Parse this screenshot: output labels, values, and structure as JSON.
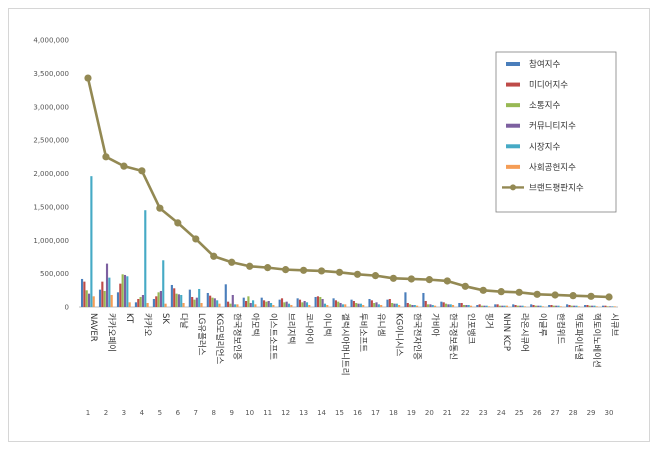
{
  "chart_data": {
    "type": "bar",
    "title": "",
    "xlabel": "",
    "ylabel": "",
    "ylim": [
      0,
      4000000
    ],
    "yticks": [
      "0",
      "500,000",
      "1,000,000",
      "1,500,000",
      "2,000,000",
      "2,500,000",
      "3,000,000",
      "3,500,000",
      "4,000,000"
    ],
    "grid": false,
    "legend_position": "top-right",
    "categories": [
      "NAVER",
      "카카오페이",
      "KT",
      "카카오",
      "SK",
      "다날",
      "LG유플러스",
      "KG모빌리언스",
      "한국정보인증",
      "아모텍",
      "이스트소프트",
      "브리지텍",
      "코나아이",
      "이니텍",
      "갤럭시아머니트리",
      "투비소프트",
      "유니셈",
      "KG이니시스",
      "한국전자인증",
      "가비아",
      "한국정보통신",
      "인포뱅크",
      "핑거",
      "NHN KCP",
      "라온시큐어",
      "이글루",
      "한컴위드",
      "헥토파이낸셜",
      "헥토이노베이션",
      "시큐브"
    ],
    "ranks": [
      "1",
      "2",
      "3",
      "4",
      "5",
      "6",
      "7",
      "8",
      "9",
      "10",
      "11",
      "12",
      "13",
      "14",
      "15",
      "16",
      "17",
      "18",
      "19",
      "20",
      "21",
      "22",
      "23",
      "24",
      "25",
      "26",
      "27",
      "28",
      "29",
      "30"
    ],
    "series": [
      {
        "name": "참여지수",
        "color": "#4a7ebb",
        "kind": "bar",
        "values": [
          420000,
          260000,
          220000,
          70000,
          120000,
          330000,
          260000,
          210000,
          340000,
          140000,
          140000,
          110000,
          130000,
          150000,
          130000,
          110000,
          120000,
          110000,
          220000,
          210000,
          80000,
          60000,
          30000,
          40000,
          40000,
          40000,
          30000,
          40000,
          30000,
          20000
        ]
      },
      {
        "name": "미디어지수",
        "color": "#be4b48",
        "kind": "bar",
        "values": [
          380000,
          380000,
          350000,
          120000,
          160000,
          280000,
          150000,
          170000,
          80000,
          90000,
          100000,
          130000,
          110000,
          160000,
          100000,
          90000,
          100000,
          120000,
          60000,
          90000,
          70000,
          60000,
          40000,
          40000,
          30000,
          30000,
          30000,
          30000,
          30000,
          20000
        ]
      },
      {
        "name": "소통지수",
        "color": "#98b954",
        "kind": "bar",
        "values": [
          250000,
          240000,
          490000,
          150000,
          220000,
          200000,
          110000,
          140000,
          50000,
          160000,
          80000,
          70000,
          70000,
          150000,
          80000,
          60000,
          60000,
          60000,
          40000,
          40000,
          50000,
          30000,
          20000,
          20000,
          20000,
          20000,
          20000,
          20000,
          20000,
          10000
        ]
      },
      {
        "name": "커뮤니티지수",
        "color": "#7d60a0",
        "kind": "bar",
        "values": [
          200000,
          650000,
          480000,
          180000,
          240000,
          190000,
          140000,
          130000,
          180000,
          60000,
          90000,
          80000,
          90000,
          120000,
          60000,
          50000,
          70000,
          50000,
          30000,
          40000,
          40000,
          30000,
          20000,
          20000,
          20000,
          20000,
          20000,
          20000,
          20000,
          10000
        ]
      },
      {
        "name": "시장지수",
        "color": "#46aac5",
        "kind": "bar",
        "values": [
          1960000,
          440000,
          460000,
          1450000,
          700000,
          180000,
          270000,
          100000,
          40000,
          100000,
          60000,
          50000,
          70000,
          50000,
          40000,
          50000,
          40000,
          50000,
          30000,
          30000,
          40000,
          30000,
          20000,
          20000,
          20000,
          20000,
          20000,
          20000,
          20000,
          10000
        ]
      },
      {
        "name": "사회공헌지수",
        "color": "#f59d56",
        "kind": "bar",
        "values": [
          160000,
          180000,
          70000,
          60000,
          50000,
          60000,
          60000,
          50000,
          40000,
          40000,
          30000,
          30000,
          30000,
          30000,
          40000,
          30000,
          30000,
          30000,
          20000,
          20000,
          30000,
          20000,
          10000,
          20000,
          10000,
          10000,
          10000,
          10000,
          10000,
          10000
        ]
      },
      {
        "name": "브랜드평판지수",
        "color": "#938953",
        "kind": "line",
        "values": [
          3430000,
          2250000,
          2110000,
          2040000,
          1480000,
          1260000,
          1020000,
          760000,
          670000,
          610000,
          590000,
          560000,
          550000,
          540000,
          520000,
          490000,
          470000,
          430000,
          420000,
          410000,
          390000,
          310000,
          250000,
          230000,
          220000,
          190000,
          180000,
          170000,
          160000,
          150000
        ]
      }
    ]
  }
}
